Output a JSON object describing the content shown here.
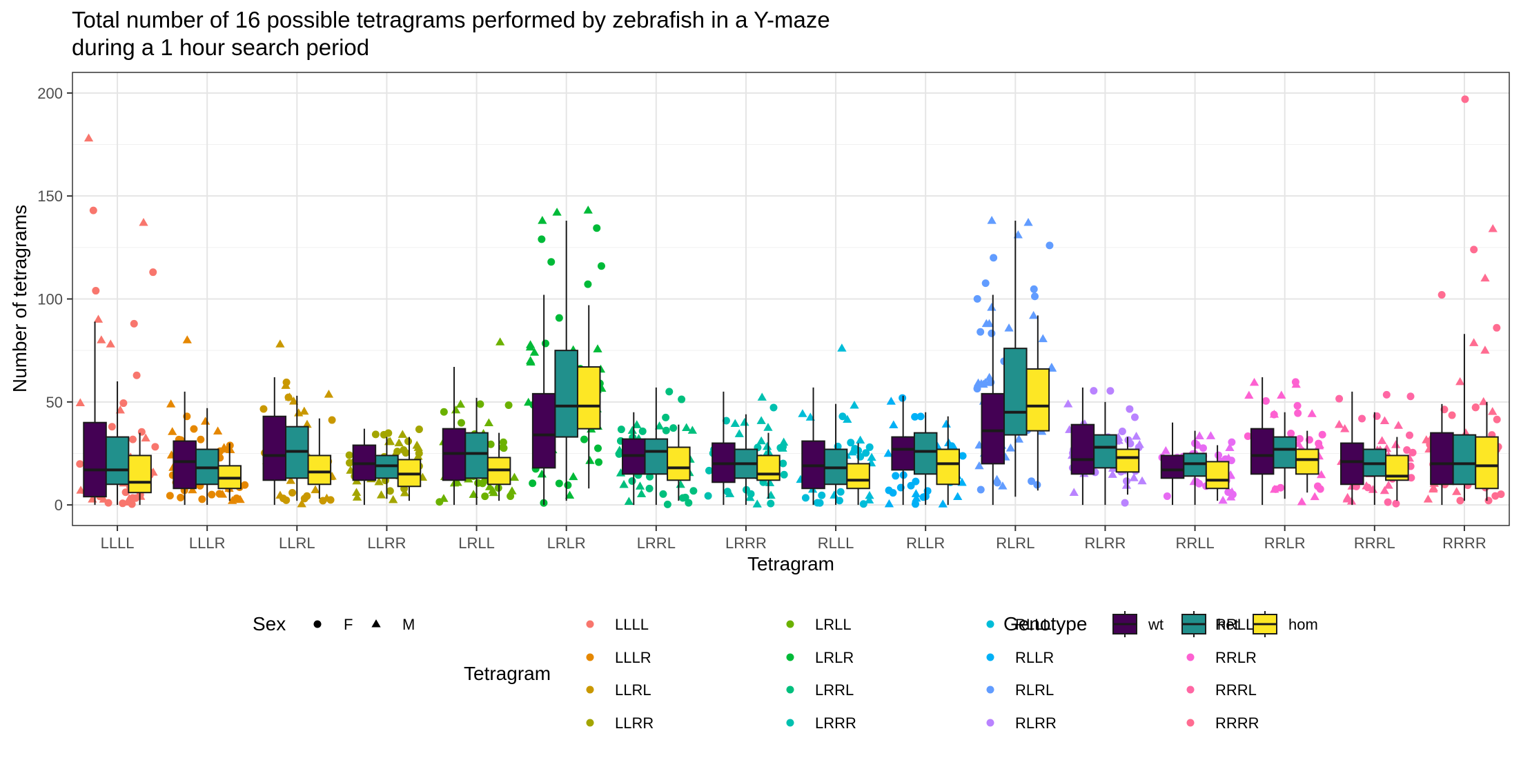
{
  "chart_data": {
    "type": "box",
    "title_line1": "Total number of 16 possible tetragrams performed by zebrafish in a Y-maze",
    "title_line2": "during a 1 hour search period",
    "xlabel": "Tetragram",
    "ylabel": "Number of tetragrams",
    "ylim": [
      -10,
      210
    ],
    "yticks": [
      0,
      50,
      100,
      150,
      200
    ],
    "grid": true,
    "legend_position": "bottom",
    "categories": [
      "LLLL",
      "LLLR",
      "LLRL",
      "LLRR",
      "LRLL",
      "LRLR",
      "LRRL",
      "LRRR",
      "RLLL",
      "RLLR",
      "RLRL",
      "RLRR",
      "RRLL",
      "RRLR",
      "RRRL",
      "RRRR"
    ],
    "category_colors": [
      "#F8766D",
      "#E58700",
      "#C99800",
      "#A3A500",
      "#6BB100",
      "#00BA38",
      "#00BF7D",
      "#00C0AF",
      "#00BCD8",
      "#00B0F6",
      "#619CFF",
      "#B983FF",
      "#E76BF3",
      "#FD61D1",
      "#FF67A4",
      "#FF6C91"
    ],
    "genotypes": [
      {
        "name": "wt",
        "color": "#440154"
      },
      {
        "name": "het",
        "color": "#21908C"
      },
      {
        "name": "hom",
        "color": "#FDE725"
      }
    ],
    "boxes": [
      {
        "category": "LLLL",
        "genotype": "wt",
        "whisker_low": 0,
        "q1": 4,
        "median": 17,
        "q3": 40,
        "whisker_high": 89
      },
      {
        "category": "LLLL",
        "genotype": "het",
        "whisker_low": 0,
        "q1": 10,
        "median": 17,
        "q3": 33,
        "whisker_high": 60
      },
      {
        "category": "LLLL",
        "genotype": "hom",
        "whisker_low": 0,
        "q1": 6,
        "median": 11,
        "q3": 24,
        "whisker_high": 35
      },
      {
        "category": "LLLR",
        "genotype": "wt",
        "whisker_low": 0,
        "q1": 8,
        "median": 21,
        "q3": 31,
        "whisker_high": 55
      },
      {
        "category": "LLLR",
        "genotype": "het",
        "whisker_low": 0,
        "q1": 10,
        "median": 18,
        "q3": 27,
        "whisker_high": 47
      },
      {
        "category": "LLLR",
        "genotype": "hom",
        "whisker_low": 2,
        "q1": 8,
        "median": 13,
        "q3": 19,
        "whisker_high": 30
      },
      {
        "category": "LLRL",
        "genotype": "wt",
        "whisker_low": 0,
        "q1": 12,
        "median": 24,
        "q3": 43,
        "whisker_high": 62
      },
      {
        "category": "LLRL",
        "genotype": "het",
        "whisker_low": 2,
        "q1": 13,
        "median": 26,
        "q3": 38,
        "whisker_high": 53
      },
      {
        "category": "LLRL",
        "genotype": "hom",
        "whisker_low": 3,
        "q1": 10,
        "median": 16,
        "q3": 24,
        "whisker_high": 42
      },
      {
        "category": "LLRR",
        "genotype": "wt",
        "whisker_low": 0,
        "q1": 12,
        "median": 20,
        "q3": 29,
        "whisker_high": 37
      },
      {
        "category": "LLRR",
        "genotype": "het",
        "whisker_low": 3,
        "q1": 13,
        "median": 19,
        "q3": 24,
        "whisker_high": 33
      },
      {
        "category": "LLRR",
        "genotype": "hom",
        "whisker_low": 2,
        "q1": 9,
        "median": 15,
        "q3": 22,
        "whisker_high": 33
      },
      {
        "category": "LRLL",
        "genotype": "wt",
        "whisker_low": 0,
        "q1": 12,
        "median": 25,
        "q3": 37,
        "whisker_high": 67
      },
      {
        "category": "LRLL",
        "genotype": "het",
        "whisker_low": 0,
        "q1": 13,
        "median": 25,
        "q3": 35,
        "whisker_high": 52
      },
      {
        "category": "LRLL",
        "genotype": "hom",
        "whisker_low": 2,
        "q1": 10,
        "median": 17,
        "q3": 23,
        "whisker_high": 35
      },
      {
        "category": "LRLR",
        "genotype": "wt",
        "whisker_low": 0,
        "q1": 18,
        "median": 34,
        "q3": 54,
        "whisker_high": 102
      },
      {
        "category": "LRLR",
        "genotype": "het",
        "whisker_low": 2,
        "q1": 33,
        "median": 48,
        "q3": 75,
        "whisker_high": 138
      },
      {
        "category": "LRLR",
        "genotype": "hom",
        "whisker_low": 8,
        "q1": 37,
        "median": 48,
        "q3": 67,
        "whisker_high": 97
      },
      {
        "category": "LRRL",
        "genotype": "wt",
        "whisker_low": 0,
        "q1": 15,
        "median": 24,
        "q3": 32,
        "whisker_high": 45
      },
      {
        "category": "LRRL",
        "genotype": "het",
        "whisker_low": 0,
        "q1": 15,
        "median": 26,
        "q3": 32,
        "whisker_high": 57
      },
      {
        "category": "LRRL",
        "genotype": "hom",
        "whisker_low": 2,
        "q1": 12,
        "median": 18,
        "q3": 28,
        "whisker_high": 39
      },
      {
        "category": "LRRR",
        "genotype": "wt",
        "whisker_low": 0,
        "q1": 11,
        "median": 20,
        "q3": 30,
        "whisker_high": 55
      },
      {
        "category": "LRRR",
        "genotype": "het",
        "whisker_low": 0,
        "q1": 13,
        "median": 20,
        "q3": 27,
        "whisker_high": 44
      },
      {
        "category": "LRRR",
        "genotype": "hom",
        "whisker_low": 3,
        "q1": 12,
        "median": 15,
        "q3": 24,
        "whisker_high": 35
      },
      {
        "category": "RLLL",
        "genotype": "wt",
        "whisker_low": 0,
        "q1": 8,
        "median": 19,
        "q3": 31,
        "whisker_high": 57
      },
      {
        "category": "RLLL",
        "genotype": "het",
        "whisker_low": 0,
        "q1": 10,
        "median": 18,
        "q3": 27,
        "whisker_high": 49
      },
      {
        "category": "RLLL",
        "genotype": "hom",
        "whisker_low": 0,
        "q1": 8,
        "median": 12,
        "q3": 20,
        "whisker_high": 30
      },
      {
        "category": "RLLR",
        "genotype": "wt",
        "whisker_low": 0,
        "q1": 17,
        "median": 27,
        "q3": 33,
        "whisker_high": 53
      },
      {
        "category": "RLLR",
        "genotype": "het",
        "whisker_low": 0,
        "q1": 15,
        "median": 26,
        "q3": 35,
        "whisker_high": 45
      },
      {
        "category": "RLLR",
        "genotype": "hom",
        "whisker_low": 0,
        "q1": 10,
        "median": 20,
        "q3": 27,
        "whisker_high": 43
      },
      {
        "category": "RLRL",
        "genotype": "wt",
        "whisker_low": 0,
        "q1": 20,
        "median": 36,
        "q3": 54,
        "whisker_high": 102
      },
      {
        "category": "RLRL",
        "genotype": "het",
        "whisker_low": 4,
        "q1": 34,
        "median": 45,
        "q3": 76,
        "whisker_high": 138
      },
      {
        "category": "RLRL",
        "genotype": "hom",
        "whisker_low": 7,
        "q1": 36,
        "median": 48,
        "q3": 66,
        "whisker_high": 92
      },
      {
        "category": "RLRR",
        "genotype": "wt",
        "whisker_low": 0,
        "q1": 15,
        "median": 22,
        "q3": 39,
        "whisker_high": 57
      },
      {
        "category": "RLRR",
        "genotype": "het",
        "whisker_low": 0,
        "q1": 18,
        "median": 28,
        "q3": 34,
        "whisker_high": 50
      },
      {
        "category": "RLRR",
        "genotype": "hom",
        "whisker_low": 5,
        "q1": 16,
        "median": 23,
        "q3": 27,
        "whisker_high": 33
      },
      {
        "category": "RRLL",
        "genotype": "wt",
        "whisker_low": 0,
        "q1": 13,
        "median": 17,
        "q3": 24,
        "whisker_high": 40
      },
      {
        "category": "RRLL",
        "genotype": "het",
        "whisker_low": 0,
        "q1": 14,
        "median": 20,
        "q3": 25,
        "whisker_high": 36
      },
      {
        "category": "RRLL",
        "genotype": "hom",
        "whisker_low": 2,
        "q1": 8,
        "median": 12,
        "q3": 21,
        "whisker_high": 29
      },
      {
        "category": "RRLR",
        "genotype": "wt",
        "whisker_low": 0,
        "q1": 15,
        "median": 24,
        "q3": 37,
        "whisker_high": 62
      },
      {
        "category": "RRLR",
        "genotype": "het",
        "whisker_low": 3,
        "q1": 18,
        "median": 27,
        "q3": 33,
        "whisker_high": 45
      },
      {
        "category": "RRLR",
        "genotype": "hom",
        "whisker_low": 6,
        "q1": 15,
        "median": 22,
        "q3": 27,
        "whisker_high": 36
      },
      {
        "category": "RRRL",
        "genotype": "wt",
        "whisker_low": 0,
        "q1": 10,
        "median": 21,
        "q3": 30,
        "whisker_high": 55
      },
      {
        "category": "RRRL",
        "genotype": "het",
        "whisker_low": 0,
        "q1": 14,
        "median": 20,
        "q3": 27,
        "whisker_high": 45
      },
      {
        "category": "RRRL",
        "genotype": "hom",
        "whisker_low": 2,
        "q1": 12,
        "median": 14,
        "q3": 24,
        "whisker_high": 33
      },
      {
        "category": "RRRR",
        "genotype": "wt",
        "whisker_low": 0,
        "q1": 10,
        "median": 20,
        "q3": 35,
        "whisker_high": 49
      },
      {
        "category": "RRRR",
        "genotype": "het",
        "whisker_low": 2,
        "q1": 10,
        "median": 20,
        "q3": 34,
        "whisker_high": 83
      },
      {
        "category": "RRRR",
        "genotype": "hom",
        "whisker_low": 2,
        "q1": 8,
        "median": 19,
        "q3": 33,
        "whisker_high": 50
      }
    ],
    "points_per_category": 48,
    "outliers": [
      {
        "category": "LLLL",
        "value": 178,
        "shape": "M"
      },
      {
        "category": "LLLL",
        "value": 143,
        "shape": "F"
      },
      {
        "category": "LLLL",
        "value": 137,
        "shape": "M"
      },
      {
        "category": "LLLL",
        "value": 113,
        "shape": "F"
      },
      {
        "category": "LLLL",
        "value": 104,
        "shape": "F"
      },
      {
        "category": "LLLL",
        "value": 90,
        "shape": "M"
      },
      {
        "category": "LLLL",
        "value": 88,
        "shape": "F"
      },
      {
        "category": "LLLL",
        "value": 80,
        "shape": "M"
      },
      {
        "category": "LLLL",
        "value": 78,
        "shape": "M"
      },
      {
        "category": "LLLR",
        "value": 80,
        "shape": "M"
      },
      {
        "category": "LLRL",
        "value": 78,
        "shape": "M"
      },
      {
        "category": "LRLL",
        "value": 79,
        "shape": "M"
      },
      {
        "category": "LRLR",
        "value": 143,
        "shape": "M"
      },
      {
        "category": "LRLR",
        "value": 142,
        "shape": "M"
      },
      {
        "category": "LRLR",
        "value": 138,
        "shape": "M"
      },
      {
        "category": "LRLR",
        "value": 129,
        "shape": "F"
      },
      {
        "category": "LRLR",
        "value": 118,
        "shape": "F"
      },
      {
        "category": "LRLR",
        "value": 116,
        "shape": "F"
      },
      {
        "category": "RLLL",
        "value": 76,
        "shape": "M"
      },
      {
        "category": "RLRL",
        "value": 138,
        "shape": "M"
      },
      {
        "category": "RLRL",
        "value": 137,
        "shape": "M"
      },
      {
        "category": "RLRL",
        "value": 131,
        "shape": "M"
      },
      {
        "category": "RLRL",
        "value": 126,
        "shape": "F"
      },
      {
        "category": "RLRL",
        "value": 120,
        "shape": "F"
      },
      {
        "category": "RRRR",
        "value": 197,
        "shape": "F"
      },
      {
        "category": "RRRR",
        "value": 134,
        "shape": "M"
      },
      {
        "category": "RRRR",
        "value": 124,
        "shape": "F"
      },
      {
        "category": "RRRR",
        "value": 110,
        "shape": "M"
      },
      {
        "category": "RRRR",
        "value": 102,
        "shape": "F"
      },
      {
        "category": "RRRR",
        "value": 86,
        "shape": "F"
      },
      {
        "category": "RRRR",
        "value": 75,
        "shape": "M"
      }
    ],
    "legend": {
      "sex_title": "Sex",
      "sex_items": [
        {
          "label": "F",
          "shape": "circle"
        },
        {
          "label": "M",
          "shape": "triangle"
        }
      ],
      "tetragram_title": "Tetragram",
      "genotype_title": "Genotype"
    }
  }
}
